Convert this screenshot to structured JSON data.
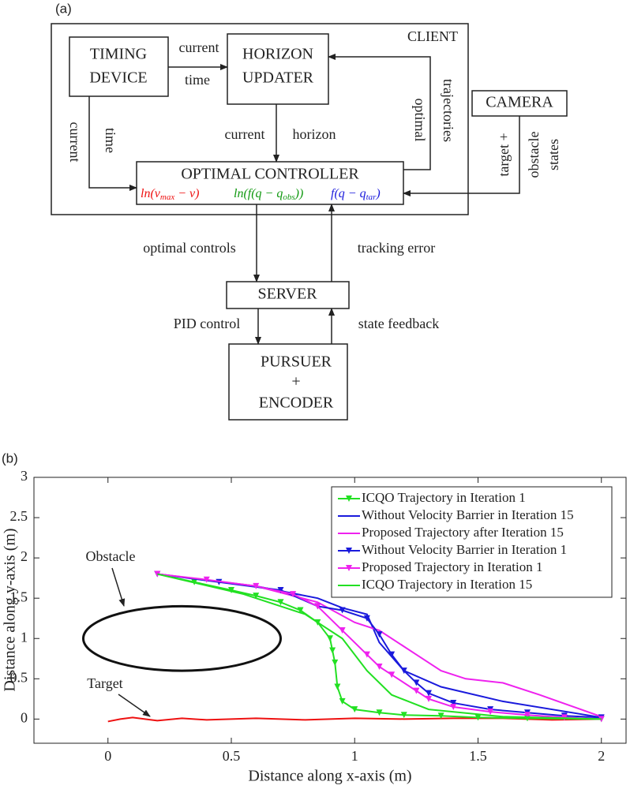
{
  "panel_a": {
    "label": "(a)",
    "client": "CLIENT",
    "timing": [
      "TIMING",
      "DEVICE"
    ],
    "horizon": [
      "HORIZON",
      "UPDATER"
    ],
    "controller": {
      "title": "OPTIMAL CONTROLLER",
      "terms": [
        {
          "pre": "ln(v",
          "sub": "max",
          "post": " − v)",
          "color": "#ee1111"
        },
        {
          "pre": "ln(f(q − q",
          "sub": "obs",
          "post": "))",
          "color": "#119911"
        },
        {
          "pre": "f(q − q",
          "sub": "tar",
          "post": ")",
          "color": "#1a1adc"
        }
      ]
    },
    "camera": "CAMERA",
    "server": "SERVER",
    "pursuer": [
      "PURSUER",
      "+",
      "ENCODER"
    ],
    "edge_labels": [
      "current",
      "time",
      "current",
      "time",
      "current",
      "horizon",
      "optimal",
      "trajectories",
      "target +",
      "obstacle",
      "states",
      "optimal controls",
      "tracking error",
      "PID control",
      "state feedback"
    ]
  },
  "chart_data": {
    "type": "line",
    "panel_label": "(b)",
    "xlabel": "Distance along x-axis (m)",
    "ylabel": "Distance along y-axis (m)",
    "xlim": [
      -0.3,
      2.1
    ],
    "ylim": [
      -0.3,
      3
    ],
    "xticks": [
      0,
      0.5,
      1,
      1.5,
      2
    ],
    "yticks": [
      0,
      0.5,
      1,
      1.5,
      2,
      2.5,
      3
    ],
    "legend": "upper right",
    "annotations": [
      "Obstacle",
      "Target"
    ],
    "obstacle": {
      "cx": 0.3,
      "cy": 1,
      "rx": 0.4,
      "ry": 0.4
    },
    "target_path": {
      "color": "#ee1111",
      "x": [
        0,
        0.05,
        0.1,
        0.2,
        0.3,
        0.4,
        0.5,
        0.6,
        0.8,
        1,
        1.2,
        1.4,
        1.6,
        1.8,
        2
      ],
      "values": [
        -0.03,
        0,
        0.02,
        -0.02,
        0.01,
        -0.01,
        0,
        0.01,
        -0.01,
        0.01,
        0,
        0.01,
        0.01,
        -0.01,
        0
      ]
    },
    "series": [
      {
        "name": "ICQO Trajectory in Iteration 1",
        "color": "#22e022",
        "marker": "triangle-down",
        "x": [
          0.2,
          0.35,
          0.5,
          0.6,
          0.7,
          0.78,
          0.85,
          0.9,
          0.91,
          0.92,
          0.93,
          0.95,
          1.0,
          1.1,
          1.2,
          1.35,
          1.5,
          1.7,
          2
        ],
        "values": [
          1.8,
          1.7,
          1.6,
          1.53,
          1.45,
          1.35,
          1.2,
          1.0,
          0.85,
          0.7,
          0.4,
          0.22,
          0.12,
          0.08,
          0.05,
          0.04,
          0.02,
          0.01,
          0
        ]
      },
      {
        "name": "Without Velocity Barrier in Iteration 15",
        "color": "#1a1adc",
        "marker": "none",
        "x": [
          0.2,
          0.6,
          0.85,
          0.95,
          1.05,
          1.1,
          1.2,
          1.35,
          1.6,
          2
        ],
        "values": [
          1.8,
          1.65,
          1.5,
          1.38,
          1.3,
          0.95,
          0.6,
          0.4,
          0.22,
          0.02
        ]
      },
      {
        "name": "Proposed Trajectory after Iteration 15",
        "color": "#ee22ee",
        "marker": "none",
        "x": [
          0.2,
          0.6,
          0.85,
          1.0,
          1.1,
          1.25,
          1.35,
          1.45,
          1.6,
          1.75,
          2
        ],
        "values": [
          1.8,
          1.65,
          1.45,
          1.2,
          1.1,
          0.8,
          0.6,
          0.5,
          0.45,
          0.3,
          0.03
        ]
      },
      {
        "name": "Without Velocity Barrier in Iteration 1",
        "color": "#1a1adc",
        "marker": "triangle-down",
        "x": [
          0.2,
          0.45,
          0.7,
          0.85,
          0.95,
          1.05,
          1.1,
          1.15,
          1.2,
          1.25,
          1.3,
          1.4,
          1.55,
          1.7,
          1.85,
          2
        ],
        "values": [
          1.8,
          1.7,
          1.6,
          1.4,
          1.35,
          1.25,
          1.05,
          0.8,
          0.6,
          0.45,
          0.32,
          0.2,
          0.12,
          0.08,
          0.04,
          0.02
        ]
      },
      {
        "name": "Proposed Trajectory in Iteration 1",
        "color": "#ee22ee",
        "marker": "triangle-down",
        "x": [
          0.2,
          0.4,
          0.6,
          0.75,
          0.85,
          0.95,
          1.05,
          1.1,
          1.15,
          1.25,
          1.3,
          1.4,
          1.55,
          1.7,
          1.85,
          2
        ],
        "values": [
          1.8,
          1.73,
          1.65,
          1.55,
          1.4,
          1.1,
          0.8,
          0.65,
          0.55,
          0.35,
          0.25,
          0.15,
          0.09,
          0.05,
          0.02,
          0
        ]
      },
      {
        "name": "ICQO Trajectory in Iteration 15",
        "color": "#22e022",
        "marker": "none",
        "x": [
          0.2,
          0.55,
          0.8,
          0.95,
          1.05,
          1.15,
          1.3,
          1.6,
          2
        ],
        "values": [
          1.8,
          1.55,
          1.3,
          1.0,
          0.6,
          0.3,
          0.12,
          0.03,
          0
        ]
      }
    ]
  }
}
